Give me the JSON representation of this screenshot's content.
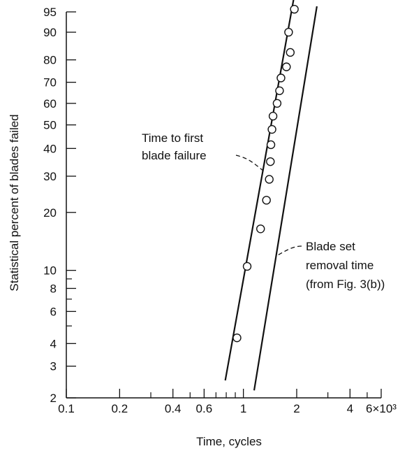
{
  "chart_data": {
    "type": "scatter",
    "title": "",
    "xlabel": "Time, cycles",
    "ylabel": "Statistical percent of blades failed",
    "x_scale": "log",
    "y_scale": "weibull-probability",
    "xlim": [
      0.1,
      6
    ],
    "ylim": [
      2,
      95
    ],
    "grid": false,
    "x_ticks": [
      {
        "value": 0.1,
        "label": "0.1"
      },
      {
        "value": 0.2,
        "label": "0.2"
      },
      {
        "value": 0.4,
        "label": "0.4"
      },
      {
        "value": 0.6,
        "label": "0.6"
      },
      {
        "value": 1,
        "label": "1"
      },
      {
        "value": 2,
        "label": "2"
      },
      {
        "value": 4,
        "label": "4"
      },
      {
        "value": 6,
        "label": "6×10³"
      }
    ],
    "x_minor_ticks": [
      0.3,
      0.5,
      0.7,
      0.8,
      0.9,
      3,
      5
    ],
    "y_ticks": [
      {
        "value": 2,
        "label": "2"
      },
      {
        "value": 3,
        "label": "3"
      },
      {
        "value": 4,
        "label": "4"
      },
      {
        "value": 6,
        "label": "6"
      },
      {
        "value": 8,
        "label": "8"
      },
      {
        "value": 10,
        "label": "10"
      },
      {
        "value": 20,
        "label": "20"
      },
      {
        "value": 30,
        "label": "30"
      },
      {
        "value": 40,
        "label": "40"
      },
      {
        "value": 50,
        "label": "50"
      },
      {
        "value": 60,
        "label": "60"
      },
      {
        "value": 70,
        "label": "70"
      },
      {
        "value": 80,
        "label": "80"
      },
      {
        "value": 90,
        "label": "90"
      },
      {
        "value": 95,
        "label": "95"
      }
    ],
    "y_minor_ticks": [
      5,
      7,
      9
    ],
    "series": [
      {
        "name": "Time to first blade failure",
        "kind": "points",
        "points": [
          {
            "x": 0.92,
            "y": 4.3
          },
          {
            "x": 1.05,
            "y": 10.5
          },
          {
            "x": 1.25,
            "y": 16.5
          },
          {
            "x": 1.35,
            "y": 23.0
          },
          {
            "x": 1.4,
            "y": 29.0
          },
          {
            "x": 1.42,
            "y": 35.0
          },
          {
            "x": 1.43,
            "y": 41.5
          },
          {
            "x": 1.45,
            "y": 48.0
          },
          {
            "x": 1.47,
            "y": 54.0
          },
          {
            "x": 1.55,
            "y": 60.0
          },
          {
            "x": 1.6,
            "y": 66.0
          },
          {
            "x": 1.63,
            "y": 72.0
          },
          {
            "x": 1.75,
            "y": 77.0
          },
          {
            "x": 1.84,
            "y": 83.0
          },
          {
            "x": 1.8,
            "y": 90.0
          },
          {
            "x": 1.94,
            "y": 95.5
          }
        ]
      },
      {
        "name": "Time to first blade failure",
        "kind": "line",
        "points": [
          {
            "x": 0.79,
            "y": 2.5
          },
          {
            "x": 1.92,
            "y": 97
          }
        ]
      },
      {
        "name": "Blade set removal time (from Fig. 3(b))",
        "kind": "line",
        "points": [
          {
            "x": 1.15,
            "y": 2.2
          },
          {
            "x": 2.6,
            "y": 96
          }
        ]
      }
    ],
    "annotations": [
      {
        "lines": [
          "Time to first",
          "blade failure"
        ]
      },
      {
        "lines": [
          "Blade set",
          "removal time",
          "(from Fig. 3(b))"
        ]
      }
    ]
  }
}
